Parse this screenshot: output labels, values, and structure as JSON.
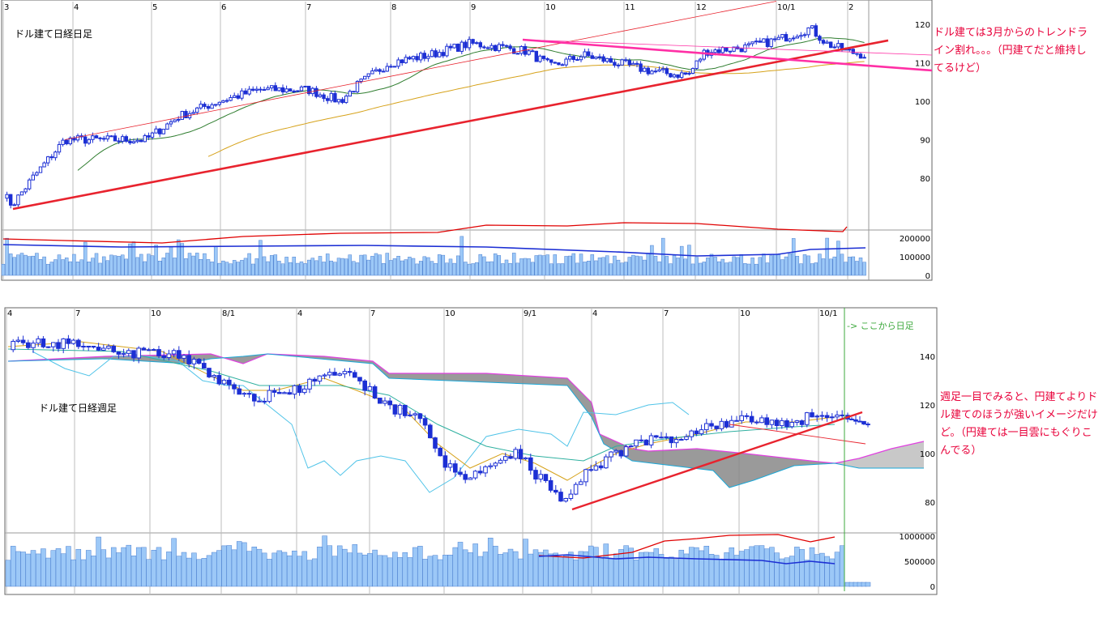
{
  "colors": {
    "up_candle": "#ffffff",
    "down_candle": "#1c2fd4",
    "volume_bar": "#9cc8f7",
    "trendline_red": "#e8232e",
    "trendline_pink": "#ff2fa5",
    "ma_short": "#2f7d2f",
    "ma_long": "#d6a21a",
    "volume_ma_red": "#e00000",
    "volume_ma_blue": "#1c2fd4",
    "kijun": "#4fc3e8",
    "cloud": "#888888",
    "cloud_light": "#c8c8c8",
    "cloud_edge": "#e040e0",
    "note_text": "#e8003a",
    "label_green": "#3ca83c"
  },
  "chart_data": [
    {
      "type": "candlestick",
      "title": "ドル建て日経日足",
      "x_ticks": [
        "3",
        "4",
        "5",
        "6",
        "7",
        "8",
        "9",
        "10",
        "11",
        "12",
        "10/1",
        "2"
      ],
      "y_ticks": [
        "120",
        "110",
        "100",
        "90",
        "80"
      ],
      "ylim": [
        68,
        128
      ],
      "volume_ticks": [
        "200000",
        "100000",
        "0"
      ],
      "volume_ylim": [
        0,
        290000
      ],
      "annotation": "ドル建ては3月からのトレンドライン割れ。。。（円建てだと維持してるけど）",
      "trendline_price_start": 72,
      "trendline_price_end": 115
    },
    {
      "type": "candlestick",
      "title": "ドル建て日経週足",
      "x_ticks": [
        "4",
        "7",
        "10",
        "8/1",
        "4",
        "7",
        "10",
        "9/1",
        "4",
        "7",
        "10",
        "10/1"
      ],
      "y_ticks": [
        "140",
        "120",
        "100",
        "80"
      ],
      "ylim": [
        71,
        150
      ],
      "volume_ticks": [
        "1000000",
        "500000",
        "0"
      ],
      "volume_ylim": [
        0,
        1150000
      ],
      "label": "-> ここから日足",
      "annotation": "週足一目でみると、円建てよりドル建てのほうが強いイメージだけど。（円建ては一目雲にもぐりこんでる）",
      "trendline_price_start": 77,
      "trendline_price_end": 117
    }
  ]
}
